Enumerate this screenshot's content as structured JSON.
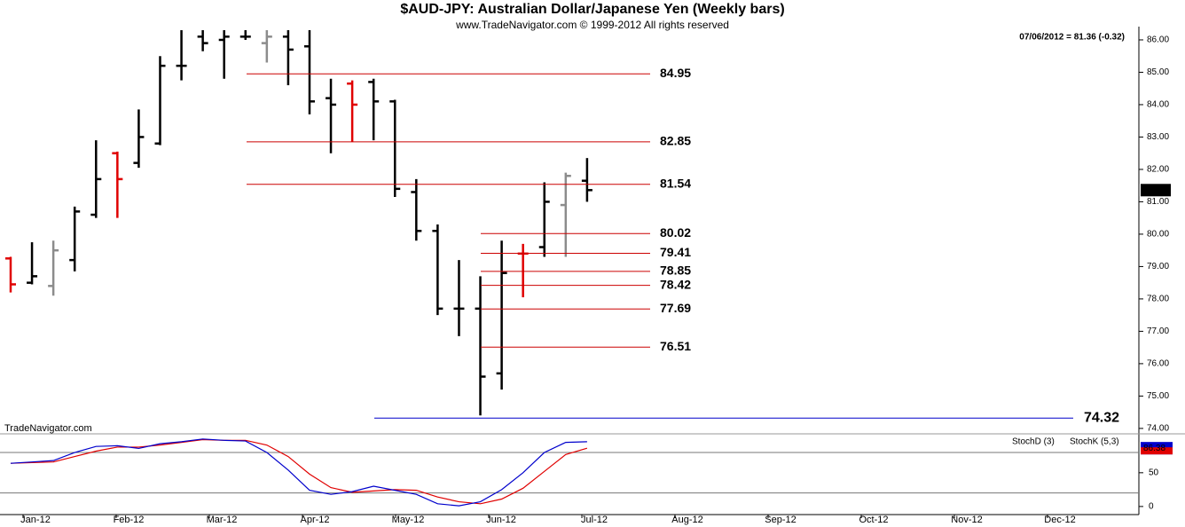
{
  "chart_data": [
    {
      "type": "ohlc",
      "title": "$AUD-JPY:  Australian Dollar/Japanese Yen  (Weekly bars)",
      "subtitle": "www.TradeNavigator.com © 1999-2012 All rights reserved",
      "annotation": "07/06/2012 = 81.36 (-0.32)",
      "watermark": "TradeNavigator.com",
      "open": [
        79.25,
        78.5,
        78.4,
        79.2,
        80.6,
        82.5,
        82.2,
        82.8,
        85.2,
        86.1,
        86.0,
        86.1,
        85.9,
        86.1,
        85.8,
        84.2,
        84.65,
        84.7,
        84.1,
        81.3,
        80.1,
        77.7,
        77.7,
        75.7,
        79.4,
        79.6,
        80.9,
        81.65
      ],
      "high": [
        79.3,
        79.75,
        79.8,
        80.85,
        82.9,
        82.55,
        83.85,
        85.5,
        86.3,
        86.3,
        86.3,
        86.3,
        86.3,
        86.3,
        86.3,
        84.8,
        84.75,
        84.8,
        84.15,
        81.7,
        80.3,
        79.2,
        78.7,
        79.8,
        79.7,
        81.6,
        81.9,
        82.35
      ],
      "low": [
        78.2,
        78.45,
        78.1,
        78.85,
        80.5,
        80.5,
        82.05,
        82.75,
        84.75,
        85.65,
        84.8,
        86.0,
        85.3,
        84.6,
        83.7,
        82.5,
        82.85,
        82.9,
        81.15,
        79.8,
        77.5,
        76.85,
        74.4,
        75.2,
        78.05,
        79.3,
        79.3,
        81.0
      ],
      "close": [
        78.45,
        78.7,
        79.5,
        80.7,
        81.7,
        81.7,
        83.0,
        85.2,
        85.2,
        85.9,
        86.1,
        86.1,
        86.1,
        85.7,
        84.1,
        84.0,
        84.0,
        84.1,
        81.4,
        80.1,
        77.7,
        77.7,
        75.6,
        78.8,
        79.4,
        81.0,
        81.8,
        81.36
      ],
      "colors": [
        "#e00000",
        "#000000",
        "#8c8c8c",
        "#000000",
        "#000000",
        "#e00000",
        "#000000",
        "#000000",
        "#000000",
        "#000000",
        "#000000",
        "#000000",
        "#8c8c8c",
        "#000000",
        "#000000",
        "#000000",
        "#e00000",
        "#000000",
        "#000000",
        "#000000",
        "#000000",
        "#000000",
        "#000000",
        "#000000",
        "#e00000",
        "#000000",
        "#8c8c8c",
        "#000000"
      ],
      "levels": [
        {
          "value": 84.95,
          "color": "#cc0000"
        },
        {
          "value": 82.85,
          "color": "#cc0000"
        },
        {
          "value": 81.54,
          "color": "#cc0000"
        },
        {
          "value": 80.02,
          "color": "#cc0000"
        },
        {
          "value": 79.41,
          "color": "#cc0000"
        },
        {
          "value": 78.85,
          "color": "#cc0000"
        },
        {
          "value": 78.42,
          "color": "#cc0000"
        },
        {
          "value": 77.69,
          "color": "#cc0000"
        },
        {
          "value": 76.51,
          "color": "#cc0000"
        },
        {
          "value": 74.32,
          "color": "#0000cc"
        }
      ],
      "ylim": [
        73.86,
        86.41
      ],
      "yticks": [
        {
          "value": 74,
          "label": "74.00"
        },
        {
          "value": 75,
          "label": "75.00"
        },
        {
          "value": 76,
          "label": "76.00"
        },
        {
          "value": 77,
          "label": "77.00"
        },
        {
          "value": 78,
          "label": "78.00"
        },
        {
          "value": 79,
          "label": "79.00"
        },
        {
          "value": 80,
          "label": "80.00"
        },
        {
          "value": 81,
          "label": "81.00"
        },
        {
          "value": 82,
          "label": "82.00"
        },
        {
          "value": 83,
          "label": "83.00"
        },
        {
          "value": 84,
          "label": "84.00"
        },
        {
          "value": 85,
          "label": "85.00"
        },
        {
          "value": 86,
          "label": "86.00"
        }
      ]
    },
    {
      "type": "line",
      "series": [
        {
          "name": "StochD (3)",
          "color": "#e00000",
          "values": [
            64,
            65,
            66,
            74,
            82,
            88,
            88,
            91,
            95,
            99,
            98,
            98,
            91,
            74,
            48,
            28,
            21,
            23,
            25,
            24,
            14,
            7,
            4,
            11,
            27,
            52,
            77,
            86.38
          ]
        },
        {
          "name": "StochK (5,3)",
          "color": "#0000cc",
          "values": [
            64,
            66,
            68,
            80,
            89,
            90,
            86,
            93,
            96,
            100,
            98,
            97,
            80,
            54,
            24,
            18,
            22,
            30,
            24,
            18,
            4,
            1,
            7,
            25,
            50,
            80,
            95,
            96
          ]
        }
      ],
      "ylim": [
        -12,
        105
      ],
      "yticks": [
        0,
        50
      ],
      "levels": [
        20,
        80
      ],
      "xtick_labels": [
        "Jan-12",
        "Feb-12",
        "Mar-12",
        "Apr-12",
        "May-12",
        "Jun-12",
        "Jul-12",
        "Aug-12",
        "Sep-12",
        "Oct-12",
        "Nov-12",
        "Dec-12"
      ]
    }
  ]
}
